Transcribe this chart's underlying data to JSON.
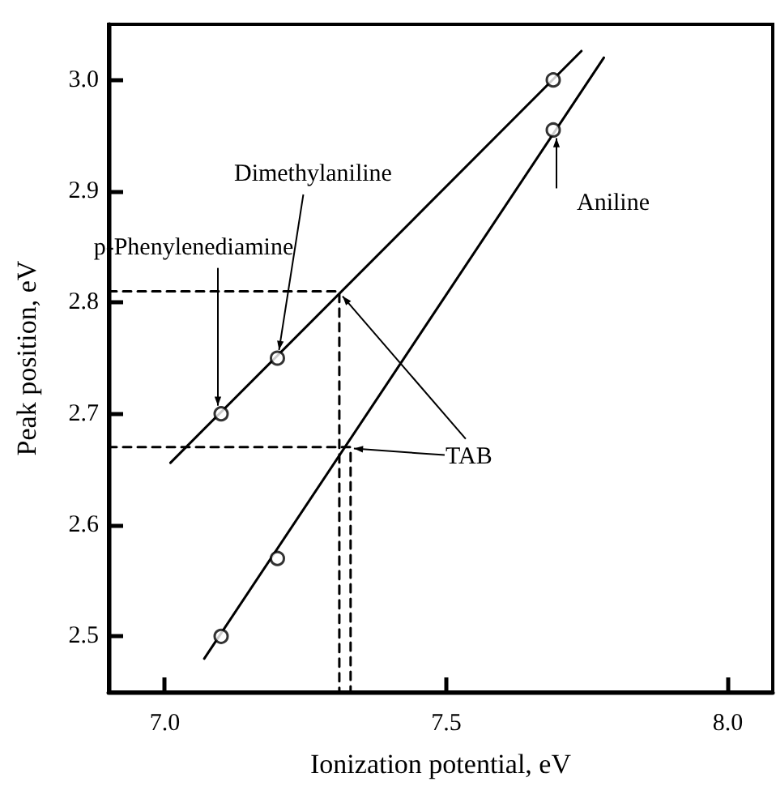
{
  "chart_data": {
    "type": "scatter",
    "xlabel": "Ionization potential, eV",
    "ylabel": "Peak position, eV",
    "xlim": [
      6.9,
      8.08
    ],
    "ylim": [
      2.45,
      3.05
    ],
    "xticks": [
      {
        "value": 7.0,
        "label": "7.0"
      },
      {
        "value": 7.5,
        "label": "7.5"
      },
      {
        "value": 8.0,
        "label": "8.0"
      }
    ],
    "yticks": [
      {
        "value": 2.5,
        "label": "2.5"
      },
      {
        "value": 2.6,
        "label": "2.6"
      },
      {
        "value": 2.7,
        "label": "2.7"
      },
      {
        "value": 2.8,
        "label": "2.8"
      },
      {
        "value": 2.9,
        "label": "2.9"
      },
      {
        "value": 3.0,
        "label": "3.0"
      }
    ],
    "grid": false,
    "series": [
      {
        "marker": "circle",
        "color": "#000000",
        "x": [
          7.1,
          7.2,
          7.69
        ],
        "values": [
          2.7,
          2.75,
          3.0
        ]
      },
      {
        "marker": "circle",
        "color": "#000000",
        "x": [
          7.1,
          7.2,
          7.69
        ],
        "values": [
          2.5,
          2.57,
          2.955
        ]
      },
      {
        "type": "line",
        "marker": "none",
        "color": "#000000",
        "line_style": "solid",
        "x": [
          7.01,
          7.74
        ],
        "values": [
          2.656,
          3.026
        ]
      },
      {
        "type": "line",
        "marker": "none",
        "color": "#000000",
        "line_style": "solid",
        "x": [
          7.07,
          7.78
        ],
        "values": [
          2.48,
          3.02
        ]
      },
      {
        "type": "line",
        "marker": "none",
        "color": "#000000",
        "line_style": "dashed",
        "x": [
          6.9,
          7.31,
          7.31
        ],
        "values": [
          2.81,
          2.81,
          2.45
        ]
      },
      {
        "type": "line",
        "marker": "none",
        "color": "#000000",
        "line_style": "dashed",
        "x": [
          6.9,
          7.33,
          7.33
        ],
        "values": [
          2.67,
          2.67,
          2.45
        ]
      }
    ],
    "annotations": [
      {
        "text": "p-Phenylenediamine",
        "x": 7.1,
        "y": 2.7
      },
      {
        "text": "Dimethylaniline",
        "x": 7.2,
        "y": 2.75
      },
      {
        "text": "Aniline",
        "x": 7.69,
        "y": 2.955
      },
      {
        "text": "TAB",
        "x": 7.31,
        "y": 2.81
      }
    ]
  }
}
